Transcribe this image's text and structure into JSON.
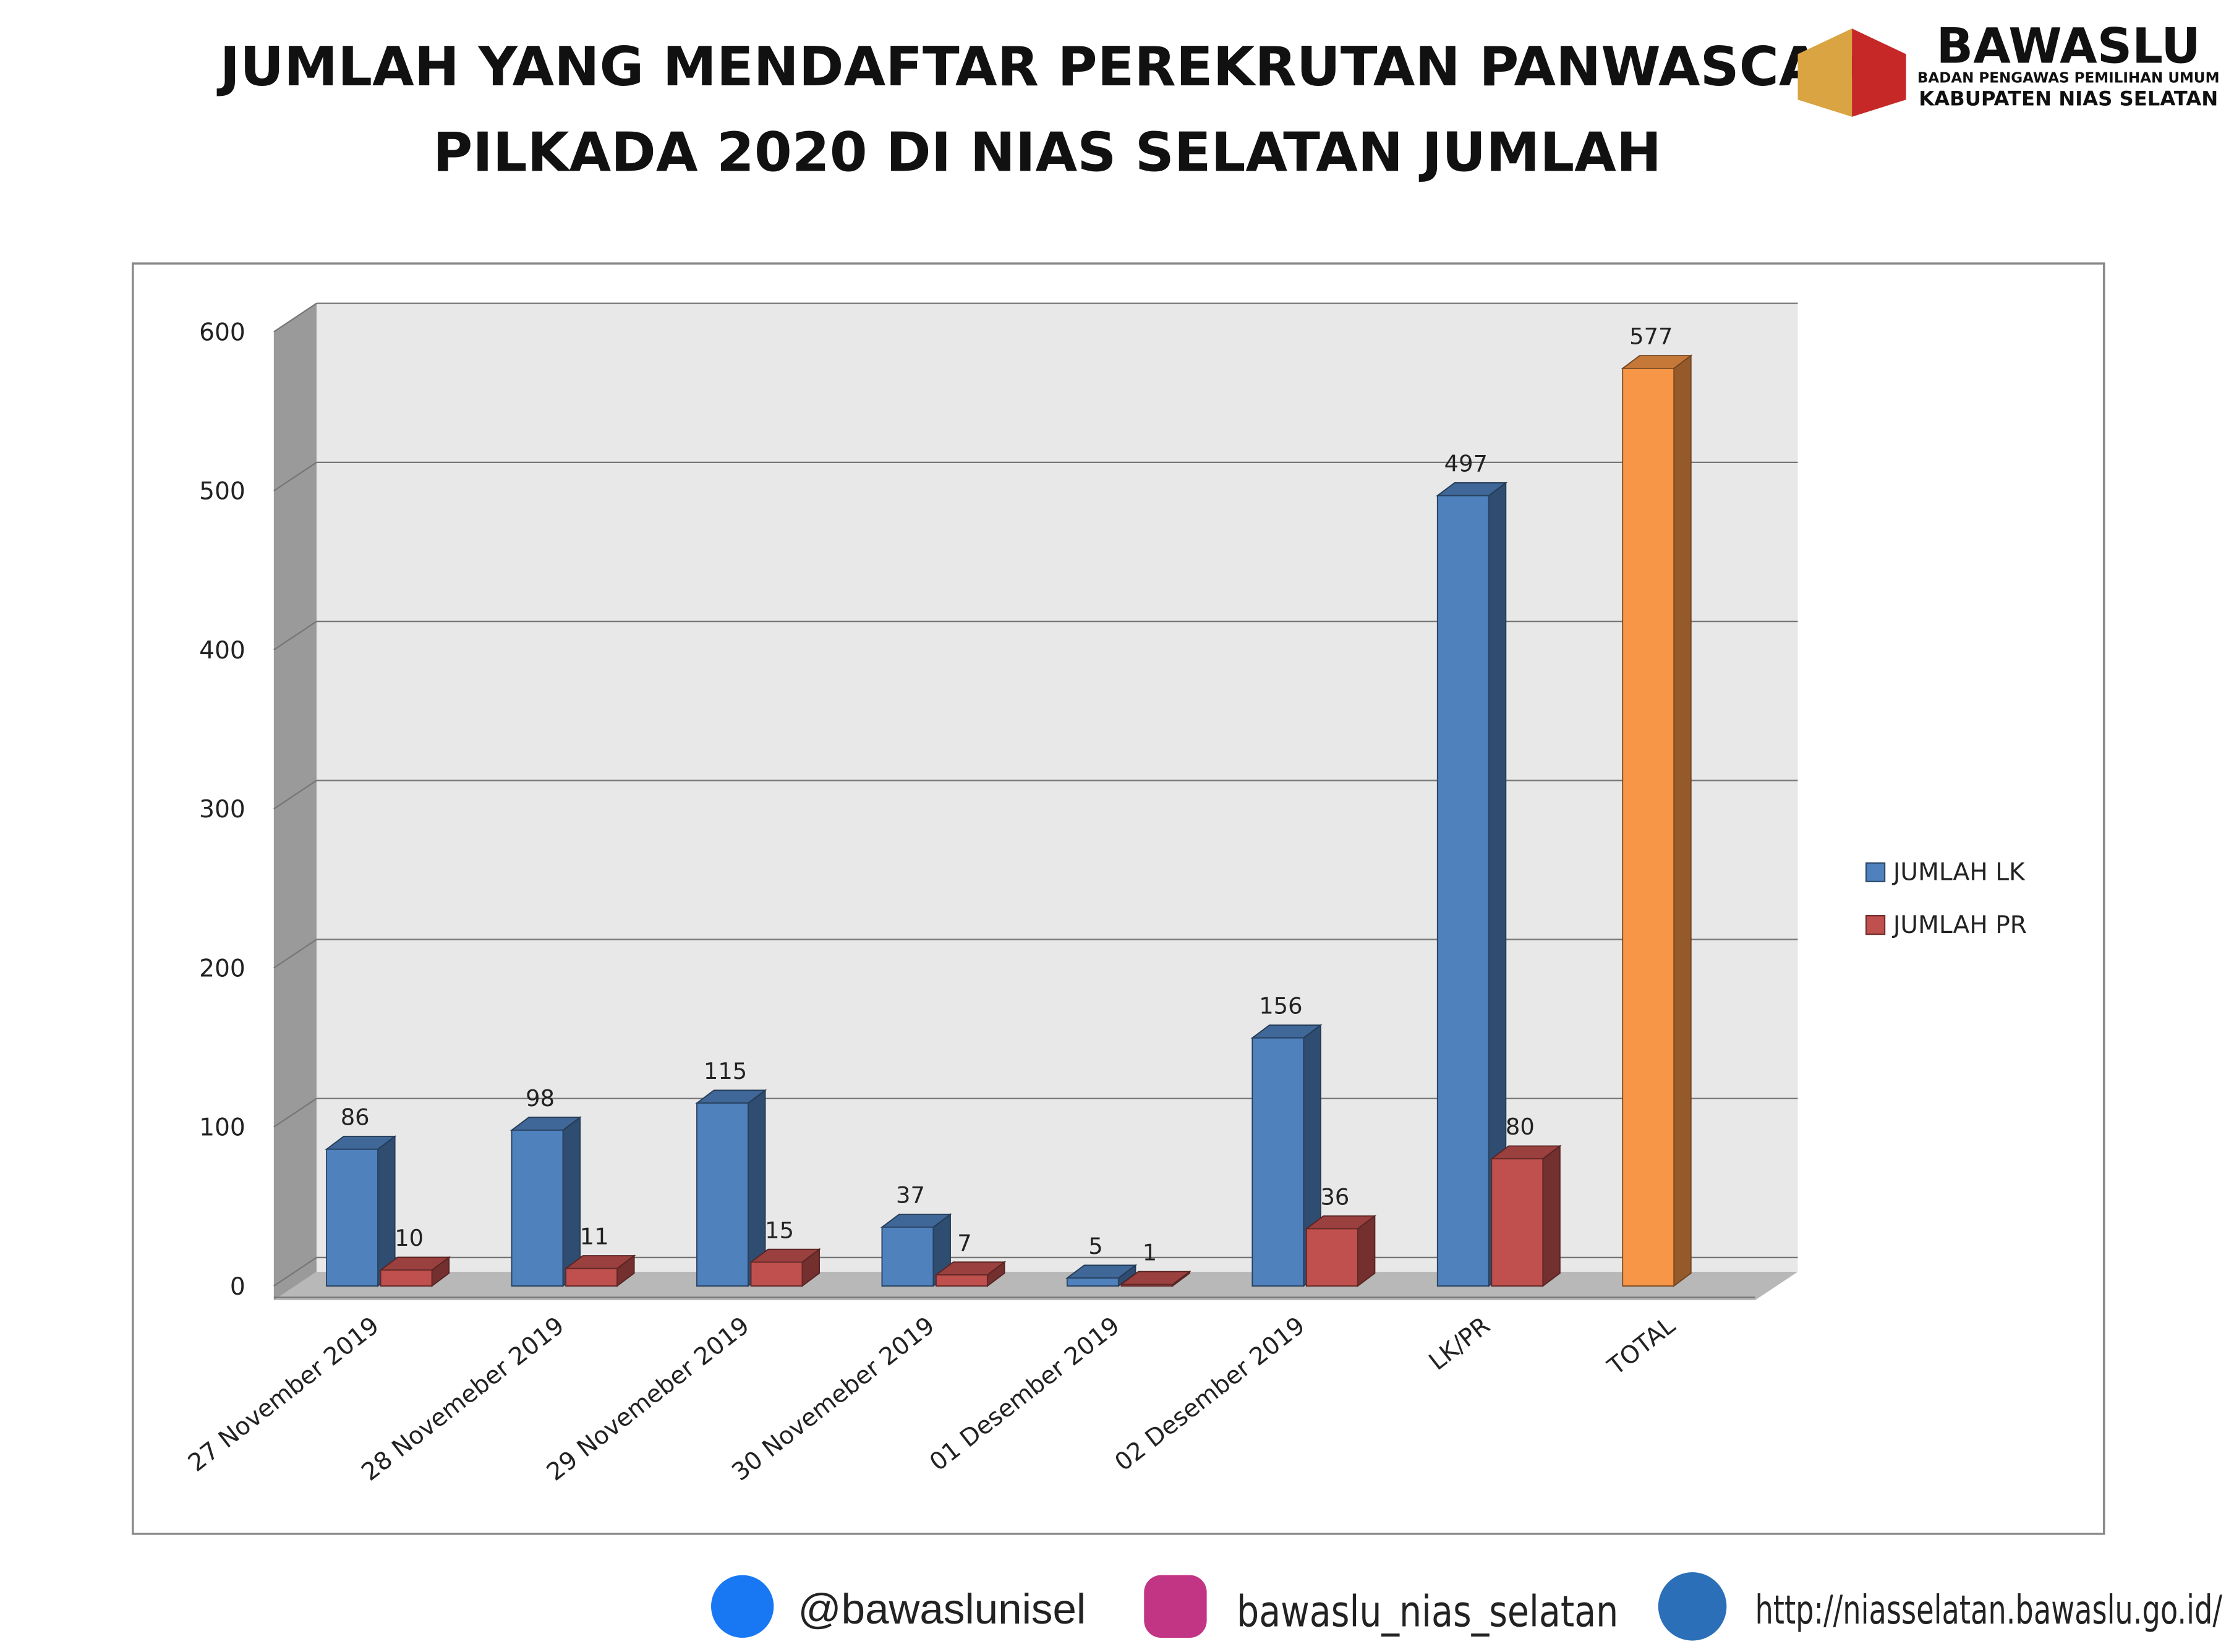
{
  "header": {
    "title_lines": [
      "JUMLAH YANG MENDAFTAR PEREKRUTAN PANWASCAM",
      "PILKADA 2020 DI NIAS SELATAN JUMLAH"
    ]
  },
  "logo": {
    "name": "BAWASLU",
    "line1": "BADAN PENGAWAS PEMILIHAN UMUM",
    "line2": "KABUPATEN NIAS SELATAN"
  },
  "footer": {
    "facebook": "@bawaslunisel",
    "instagram": "bawaslu_nias_selatan",
    "website": "http://niasselatan.bawaslu.go.id/"
  },
  "chart_data": {
    "type": "bar3d",
    "categories": [
      "27 November 2019",
      "28 Novemeber 2019",
      "29 Novemeber 2019",
      "30 Novemeber 2019",
      "01 Desember 2019",
      "02 Desember 2019",
      "LK/PR",
      "TOTAL"
    ],
    "series": [
      {
        "name": "JUMLAH LK",
        "color": "#4f81bd",
        "point_colors": [
          "#4f81bd",
          "#4f81bd",
          "#4f81bd",
          "#4f81bd",
          "#4f81bd",
          "#4f81bd",
          "#4f81bd",
          "#f79646"
        ],
        "values": [
          86,
          98,
          115,
          37,
          5,
          156,
          497,
          577
        ]
      },
      {
        "name": "JUMLAH PR",
        "color": "#c0504d",
        "values": [
          10,
          11,
          15,
          7,
          1,
          36,
          80,
          null
        ]
      }
    ],
    "ylim": [
      0,
      600
    ],
    "yticks": [
      0,
      100,
      200,
      300,
      400,
      500,
      600
    ],
    "grid": true,
    "legend": "right"
  }
}
